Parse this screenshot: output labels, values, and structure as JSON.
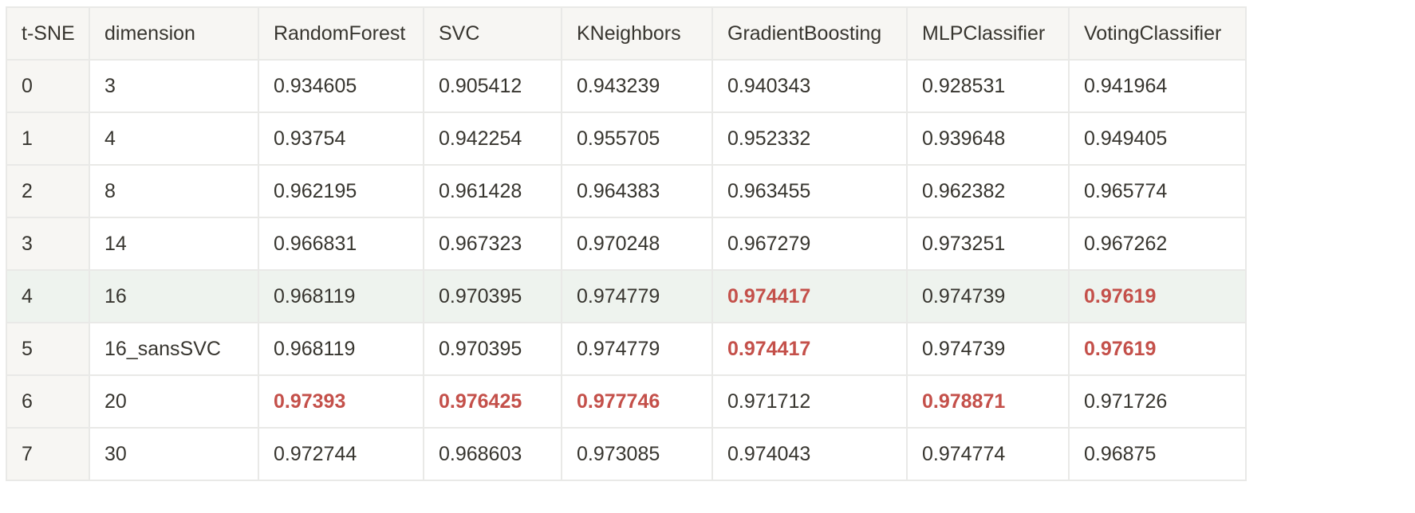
{
  "table": {
    "columns": [
      "t-SNE",
      "dimension",
      "RandomForest",
      "SVC",
      "KNeighbors",
      "GradientBoosting",
      "MLPClassifier",
      "VotingClassifier"
    ],
    "highlight_color": "#c4504a",
    "highlighted_row_index": 4,
    "rows": [
      {
        "cells": [
          {
            "text": "0",
            "best": false
          },
          {
            "text": "3",
            "best": false
          },
          {
            "text": "0.934605",
            "best": false
          },
          {
            "text": "0.905412",
            "best": false
          },
          {
            "text": "0.943239",
            "best": false
          },
          {
            "text": "0.940343",
            "best": false
          },
          {
            "text": "0.928531",
            "best": false
          },
          {
            "text": "0.941964",
            "best": false
          }
        ]
      },
      {
        "cells": [
          {
            "text": "1",
            "best": false
          },
          {
            "text": "4",
            "best": false
          },
          {
            "text": "0.93754",
            "best": false
          },
          {
            "text": "0.942254",
            "best": false
          },
          {
            "text": "0.955705",
            "best": false
          },
          {
            "text": "0.952332",
            "best": false
          },
          {
            "text": "0.939648",
            "best": false
          },
          {
            "text": "0.949405",
            "best": false
          }
        ]
      },
      {
        "cells": [
          {
            "text": "2",
            "best": false
          },
          {
            "text": "8",
            "best": false
          },
          {
            "text": "0.962195",
            "best": false
          },
          {
            "text": "0.961428",
            "best": false
          },
          {
            "text": "0.964383",
            "best": false
          },
          {
            "text": "0.963455",
            "best": false
          },
          {
            "text": "0.962382",
            "best": false
          },
          {
            "text": "0.965774",
            "best": false
          }
        ]
      },
      {
        "cells": [
          {
            "text": "3",
            "best": false
          },
          {
            "text": "14",
            "best": false
          },
          {
            "text": "0.966831",
            "best": false
          },
          {
            "text": "0.967323",
            "best": false
          },
          {
            "text": "0.970248",
            "best": false
          },
          {
            "text": "0.967279",
            "best": false
          },
          {
            "text": "0.973251",
            "best": false
          },
          {
            "text": "0.967262",
            "best": false
          }
        ]
      },
      {
        "cells": [
          {
            "text": "4",
            "best": false
          },
          {
            "text": "16",
            "best": false
          },
          {
            "text": "0.968119",
            "best": false
          },
          {
            "text": "0.970395",
            "best": false
          },
          {
            "text": "0.974779",
            "best": false
          },
          {
            "text": "0.974417",
            "best": true
          },
          {
            "text": "0.974739",
            "best": false
          },
          {
            "text": "0.97619",
            "best": true
          }
        ]
      },
      {
        "cells": [
          {
            "text": "5",
            "best": false
          },
          {
            "text": "16_sansSVC",
            "best": false
          },
          {
            "text": "0.968119",
            "best": false
          },
          {
            "text": "0.970395",
            "best": false
          },
          {
            "text": "0.974779",
            "best": false
          },
          {
            "text": "0.974417",
            "best": true
          },
          {
            "text": "0.974739",
            "best": false
          },
          {
            "text": "0.97619",
            "best": true
          }
        ]
      },
      {
        "cells": [
          {
            "text": "6",
            "best": false
          },
          {
            "text": "20",
            "best": false
          },
          {
            "text": "0.97393",
            "best": true
          },
          {
            "text": "0.976425",
            "best": true
          },
          {
            "text": "0.977746",
            "best": true
          },
          {
            "text": "0.971712",
            "best": false
          },
          {
            "text": "0.978871",
            "best": true
          },
          {
            "text": "0.971726",
            "best": false
          }
        ]
      },
      {
        "cells": [
          {
            "text": "7",
            "best": false
          },
          {
            "text": "30",
            "best": false
          },
          {
            "text": "0.972744",
            "best": false
          },
          {
            "text": "0.968603",
            "best": false
          },
          {
            "text": "0.973085",
            "best": false
          },
          {
            "text": "0.974043",
            "best": false
          },
          {
            "text": "0.974774",
            "best": false
          },
          {
            "text": "0.96875",
            "best": false
          }
        ]
      }
    ]
  }
}
